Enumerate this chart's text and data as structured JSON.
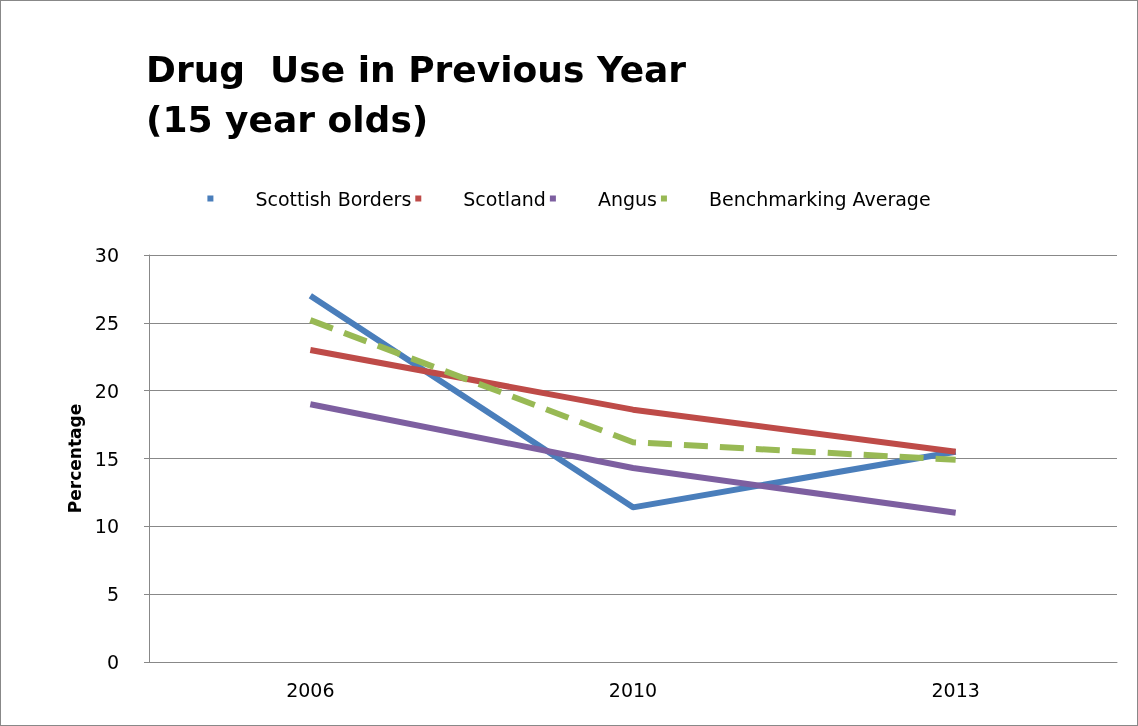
{
  "chart_data": {
    "type": "line",
    "title": "Drug  Use in Previous Year\n(15 year olds)",
    "ylabel": "Percentage",
    "categories": [
      "2006",
      "2010",
      "2013"
    ],
    "series": [
      {
        "name": "Scottish Borders",
        "color": "#4a7ebb",
        "values": [
          27.0,
          11.4,
          15.5
        ]
      },
      {
        "name": "Scotland",
        "color": "#be4b48",
        "values": [
          23.0,
          18.6,
          15.5
        ]
      },
      {
        "name": "Angus",
        "color": "#7d5fa0",
        "values": [
          19.0,
          14.3,
          11.0
        ]
      },
      {
        "name": "Benchmarking Average",
        "color": "#98b954",
        "values": [
          25.2,
          16.2,
          14.9
        ],
        "line_style": "dashed"
      }
    ],
    "ylim": [
      0,
      30
    ],
    "yticks": [
      0,
      5,
      10,
      15,
      20,
      25,
      30
    ],
    "grid": "y",
    "legend": "top",
    "marker": "none",
    "line_style": "solid"
  }
}
